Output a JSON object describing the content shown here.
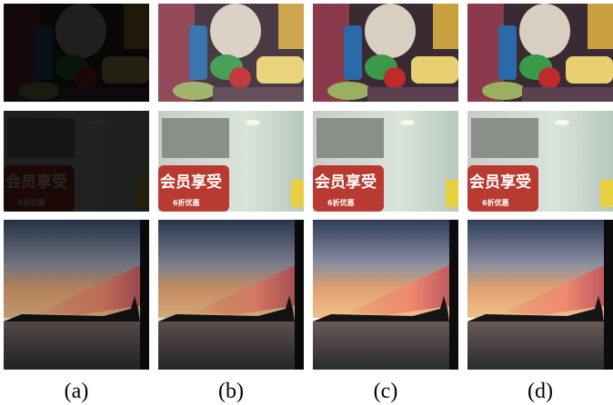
{
  "panels": [
    {
      "label": "(a)"
    },
    {
      "label": "(b)"
    },
    {
      "label": "(c)"
    },
    {
      "label": "(d)"
    }
  ],
  "sign_text": "会员享受",
  "sign_subtext": "6折优惠"
}
